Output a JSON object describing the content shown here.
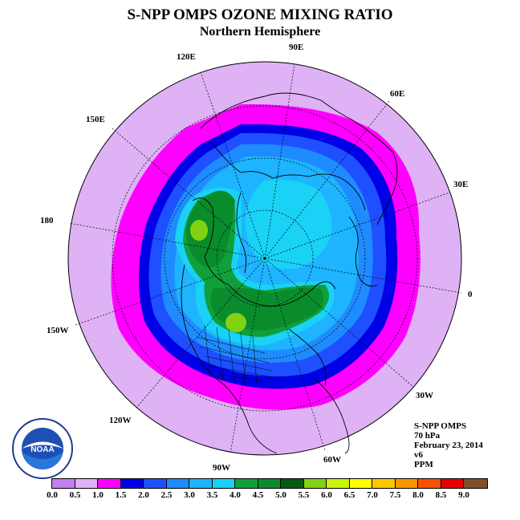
{
  "title": "S-NPP OMPS OZONE MIXING RATIO",
  "subtitle": "Northern Hemisphere",
  "longitude_labels": [
    "90E",
    "60E",
    "30E",
    "0",
    "30W",
    "60W",
    "90W",
    "120W",
    "150W",
    "180",
    "150E",
    "120E"
  ],
  "info": {
    "instrument": "S-NPP OMPS",
    "level": "70 hPa",
    "date": "February 23, 2014",
    "version": "v6",
    "units": "PPM"
  },
  "logo_text": "NOAA",
  "colorbar": {
    "ticks": [
      "0.0",
      "0.5",
      "1.0",
      "1.5",
      "2.0",
      "2.5",
      "3.0",
      "3.5",
      "4.0",
      "4.5",
      "5.0",
      "5.5",
      "6.0",
      "6.5",
      "7.0",
      "7.5",
      "8.0",
      "8.5",
      "9.0"
    ],
    "colors": [
      "#c080f0",
      "#deb2f5",
      "#ff00ff",
      "#0000e6",
      "#1e50ff",
      "#1e8cff",
      "#1eb4ff",
      "#19d2f5",
      "#0fa03c",
      "#0a8c2d",
      "#055a14",
      "#82d214",
      "#c8f50a",
      "#ffff00",
      "#fac800",
      "#fa9600",
      "#fa5000",
      "#e60000",
      "#825028"
    ]
  }
}
